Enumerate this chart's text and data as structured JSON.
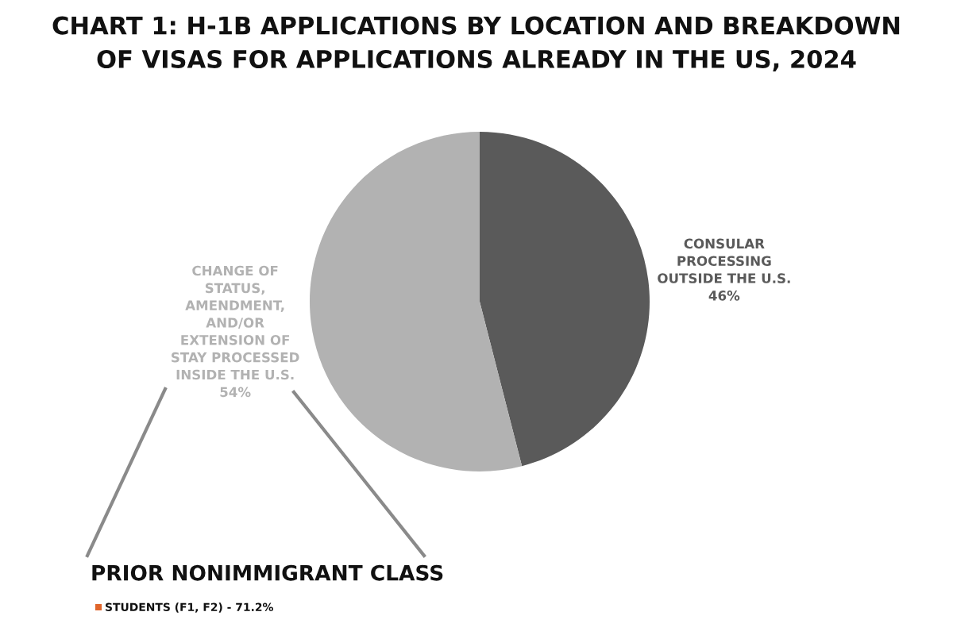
{
  "chart_data": [
    {
      "type": "pie",
      "title": "CHART 1: H-1B APPLICATIONS BY LOCATION AND BREAKDOWN\nOF VISAS FOR APPLICATIONS ALREADY IN THE US, 2024",
      "categories": [
        "CONSULAR\nPROCESSING\nOUTSIDE THE U.S.",
        "CHANGE OF\nSTATUS,\nAMENDMENT,\nAND/OR\nEXTENSION OF\nSTAY PROCESSED\nINSIDE THE U.S."
      ],
      "values": [
        46,
        54
      ],
      "value_labels": [
        "46%",
        "54%"
      ],
      "colors": [
        "#5a5a5a",
        "#b2b2b2"
      ]
    },
    {
      "type": "other",
      "title": "PRIOR NONIMMIGRANT CLASS",
      "categories": [
        "STUDENTS (F1, F2) - 71.2%"
      ],
      "colors": [
        "#e0652b"
      ]
    }
  ]
}
